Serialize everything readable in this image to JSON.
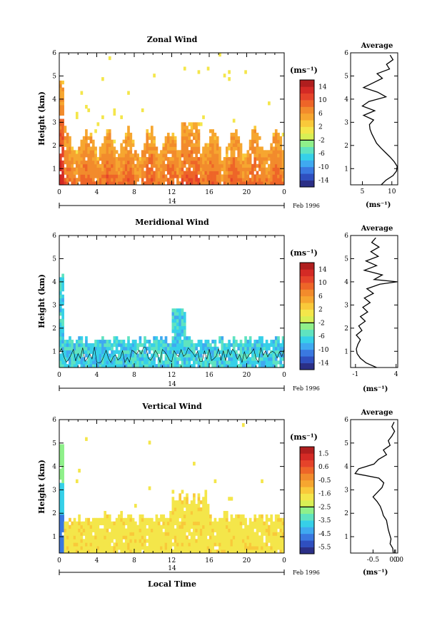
{
  "axis_labels": {
    "height": "Height (km)",
    "local_time": "Local Time",
    "date": "Feb 1996",
    "day": "14",
    "unit_main": "(ms⁻¹)",
    "unit_avg": "(ms⁻¹)",
    "average_title": "Average"
  },
  "chart_data": [
    {
      "type": "heatmap",
      "title": "Zonal Wind",
      "xlabel": "",
      "ylabel": "Height (km)",
      "x_ticks": [
        "0",
        "4",
        "8",
        "12",
        "16",
        "20",
        "0"
      ],
      "y_ticks": [
        "1",
        "2",
        "3",
        "4",
        "5",
        "6"
      ],
      "xlim": [
        0,
        24
      ],
      "ylim": [
        0.3,
        6
      ],
      "colorbar": {
        "unit": "(ms⁻¹)",
        "ticks": [
          "14",
          "10",
          "6",
          "2",
          "-2",
          "-6",
          "-10",
          "-14"
        ],
        "range": [
          -16,
          16
        ]
      },
      "avg_profile": {
        "title": "Average",
        "xlabel": "(ms⁻¹)",
        "x_ticks": [
          "5",
          "10"
        ],
        "xlim": [
          3,
          11
        ],
        "heights": [
          0.3,
          0.5,
          0.7,
          0.9,
          1.1,
          1.3,
          1.5,
          1.7,
          1.9,
          2.1,
          2.3,
          2.5,
          2.7,
          2.9,
          3.1,
          3.3,
          3.5,
          3.7,
          3.9,
          4.1,
          4.3,
          4.5,
          4.7,
          4.9,
          5.1,
          5.3,
          5.5,
          5.7,
          5.9
        ],
        "values": [
          8.2,
          9.0,
          10.2,
          10.8,
          10.9,
          10.4,
          9.7,
          8.9,
          8.1,
          7.4,
          7.0,
          6.6,
          6.3,
          6.2,
          6.9,
          5.2,
          7.1,
          5.0,
          6.1,
          9.0,
          7.6,
          5.2,
          6.8,
          8.4,
          7.5,
          9.6,
          9.1,
          10.2,
          9.7
        ]
      }
    },
    {
      "type": "heatmap",
      "title": "Meridional Wind",
      "xlabel": "",
      "ylabel": "Height (km)",
      "x_ticks": [
        "0",
        "4",
        "8",
        "12",
        "16",
        "20",
        "0"
      ],
      "y_ticks": [
        "1",
        "2",
        "3",
        "4",
        "5",
        "6"
      ],
      "xlim": [
        0,
        24
      ],
      "ylim": [
        0.3,
        6
      ],
      "colorbar": {
        "unit": "(ms⁻¹)",
        "ticks": [
          "14",
          "10",
          "6",
          "2",
          "-2",
          "-6",
          "-10",
          "-14"
        ],
        "range": [
          -16,
          16
        ]
      },
      "avg_profile": {
        "title": "Average",
        "xlabel": "(ms⁻¹)",
        "x_ticks": [
          "-1",
          "4"
        ],
        "xlim": [
          -1.6,
          4.2
        ],
        "heights": [
          0.3,
          0.5,
          0.7,
          0.9,
          1.1,
          1.3,
          1.5,
          1.7,
          1.9,
          2.1,
          2.3,
          2.5,
          2.7,
          2.9,
          3.1,
          3.3,
          3.5,
          3.7,
          3.9,
          4.0,
          4.1,
          4.3,
          4.5,
          4.7,
          4.9,
          5.1,
          5.3,
          5.5,
          5.7,
          5.9
        ],
        "values": [
          1.6,
          0.3,
          -0.4,
          -0.8,
          -0.9,
          -0.7,
          -0.4,
          -0.9,
          -0.2,
          -0.6,
          0.2,
          -0.4,
          0.5,
          -0.1,
          0.8,
          0.1,
          1.2,
          0.4,
          2.0,
          4.1,
          1.3,
          2.3,
          0.1,
          1.6,
          0.3,
          1.8,
          0.9,
          1.9,
          1.0,
          1.5
        ]
      }
    },
    {
      "type": "heatmap",
      "title": "Vertical Wind",
      "xlabel": "Local Time",
      "ylabel": "Height (km)",
      "x_ticks": [
        "0",
        "4",
        "8",
        "12",
        "16",
        "20",
        "0"
      ],
      "y_ticks": [
        "1",
        "2",
        "3",
        "4",
        "5",
        "6"
      ],
      "xlim": [
        0,
        24
      ],
      "ylim": [
        0.3,
        6
      ],
      "colorbar": {
        "unit": "(ms⁻¹)",
        "ticks": [
          "1.5",
          "0.6",
          "-0.5",
          "-1.6",
          "-2.5",
          "-3.5",
          "-4.5",
          "-5.5"
        ],
        "range": [
          -6,
          2
        ]
      },
      "avg_profile": {
        "title": "Average",
        "xlabel": "(ms⁻¹)",
        "x_ticks": [
          "-0.5",
          "0.0",
          "0.0"
        ],
        "xlim": [
          -1.0,
          0.05
        ],
        "heights": [
          0.3,
          0.5,
          0.7,
          0.9,
          1.1,
          1.3,
          1.5,
          1.7,
          1.9,
          2.1,
          2.3,
          2.5,
          2.7,
          2.9,
          3.1,
          3.3,
          3.5,
          3.7,
          3.9,
          4.1,
          4.3,
          4.5,
          4.7,
          4.9,
          5.1,
          5.3,
          5.5,
          5.7,
          5.9
        ],
        "values": [
          -0.05,
          -0.06,
          -0.12,
          -0.1,
          -0.13,
          -0.16,
          -0.18,
          -0.2,
          -0.27,
          -0.3,
          -0.34,
          -0.41,
          -0.5,
          -0.4,
          -0.3,
          -0.26,
          -0.37,
          -0.9,
          -0.82,
          -0.48,
          -0.38,
          -0.2,
          -0.27,
          -0.12,
          -0.16,
          -0.08,
          -0.02,
          -0.08,
          -0.03
        ]
      }
    }
  ]
}
